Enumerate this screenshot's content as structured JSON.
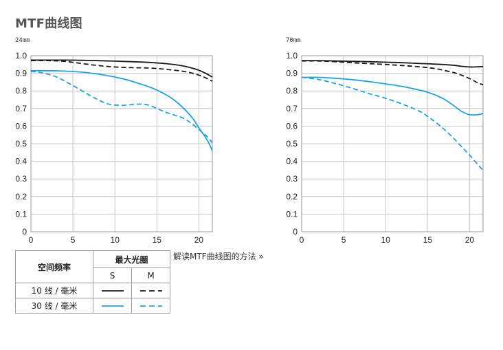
{
  "page": {
    "title": "MTF曲线图"
  },
  "legend": {
    "col_freq": "空间频率",
    "col_aperture": "最大光圈",
    "sub_s": "S",
    "sub_m": "M",
    "row_10": "10 线 / 毫米",
    "row_30": "30 线 / 毫米"
  },
  "link": {
    "text": "解读MTF曲线图的方法 »"
  },
  "colors": {
    "lp10": "#1a1a1a",
    "lp30": "#1aa3e8"
  },
  "chart_data": [
    {
      "type": "line",
      "title": "24mm",
      "xlabel": "",
      "ylabel": "",
      "xlim": [
        0,
        21.6
      ],
      "ylim": [
        0,
        1.0
      ],
      "xticks": [
        "0",
        "5",
        "10",
        "15",
        "20"
      ],
      "yticks": [
        "0",
        "0.1",
        "0.2",
        "0.3",
        "0.4",
        "0.5",
        "0.6",
        "0.7",
        "0.8",
        "0.9",
        "1.0"
      ],
      "grid": true,
      "series": [
        {
          "line": "10 线 / 毫米",
          "orientation": "S",
          "style": "solid",
          "x": [
            0,
            2,
            4,
            6,
            8,
            10,
            12,
            14,
            16,
            18,
            19,
            20,
            21,
            21.6
          ],
          "y": [
            0.975,
            0.975,
            0.975,
            0.974,
            0.972,
            0.969,
            0.966,
            0.962,
            0.955,
            0.943,
            0.932,
            0.917,
            0.895,
            0.878
          ]
        },
        {
          "line": "10 线 / 毫米",
          "orientation": "M",
          "style": "dashed",
          "x": [
            0,
            2,
            4,
            6,
            8,
            10,
            12,
            14,
            16,
            18,
            19,
            20,
            21,
            21.6
          ],
          "y": [
            0.972,
            0.972,
            0.968,
            0.956,
            0.944,
            0.936,
            0.932,
            0.93,
            0.923,
            0.912,
            0.903,
            0.89,
            0.87,
            0.855
          ]
        },
        {
          "line": "30 线 / 毫米",
          "orientation": "S",
          "style": "solid",
          "x": [
            0,
            1,
            3,
            5,
            7,
            9,
            11,
            13,
            15,
            17,
            19,
            20,
            21,
            21.6
          ],
          "y": [
            0.915,
            0.915,
            0.914,
            0.91,
            0.902,
            0.888,
            0.868,
            0.84,
            0.805,
            0.75,
            0.66,
            0.59,
            0.52,
            0.46
          ]
        },
        {
          "line": "30 线 / 毫米",
          "orientation": "M",
          "style": "dashed",
          "x": [
            0,
            1,
            3,
            5,
            7,
            8,
            9,
            10,
            11,
            12,
            13,
            14,
            15,
            16,
            17,
            18,
            19,
            20,
            21,
            21.6
          ],
          "y": [
            0.91,
            0.906,
            0.88,
            0.83,
            0.775,
            0.75,
            0.728,
            0.72,
            0.718,
            0.722,
            0.725,
            0.72,
            0.7,
            0.68,
            0.664,
            0.648,
            0.62,
            0.58,
            0.54,
            0.505
          ]
        }
      ]
    },
    {
      "type": "line",
      "title": "70mm",
      "xlabel": "",
      "ylabel": "",
      "xlim": [
        0,
        21.6
      ],
      "ylim": [
        0,
        1.0
      ],
      "xticks": [
        "0",
        "5",
        "10",
        "15",
        "20"
      ],
      "yticks": [
        "0",
        "0.1",
        "0.2",
        "0.3",
        "0.4",
        "0.5",
        "0.6",
        "0.7",
        "0.8",
        "0.9",
        "1.0"
      ],
      "grid": true,
      "series": [
        {
          "line": "10 线 / 毫米",
          "orientation": "S",
          "style": "solid",
          "x": [
            0,
            2,
            4,
            6,
            8,
            10,
            12,
            14,
            16,
            18,
            19,
            20,
            21,
            21.6
          ],
          "y": [
            0.972,
            0.972,
            0.97,
            0.968,
            0.966,
            0.963,
            0.96,
            0.956,
            0.952,
            0.946,
            0.94,
            0.936,
            0.937,
            0.938
          ]
        },
        {
          "line": "10 线 / 毫米",
          "orientation": "M",
          "style": "dashed",
          "x": [
            0,
            2,
            4,
            6,
            8,
            10,
            12,
            14,
            16,
            18,
            19,
            20,
            21,
            21.6
          ],
          "y": [
            0.97,
            0.97,
            0.966,
            0.96,
            0.955,
            0.95,
            0.944,
            0.937,
            0.926,
            0.905,
            0.89,
            0.87,
            0.845,
            0.835
          ]
        },
        {
          "line": "30 线 / 毫米",
          "orientation": "S",
          "style": "solid",
          "x": [
            0,
            2,
            4,
            6,
            8,
            10,
            12,
            14,
            15,
            16,
            17,
            18,
            19,
            20,
            21,
            21.6
          ],
          "y": [
            0.877,
            0.877,
            0.872,
            0.864,
            0.853,
            0.84,
            0.825,
            0.805,
            0.792,
            0.775,
            0.752,
            0.72,
            0.685,
            0.665,
            0.665,
            0.672
          ]
        },
        {
          "line": "30 线 / 毫米",
          "orientation": "M",
          "style": "dashed",
          "x": [
            0,
            2,
            4,
            6,
            8,
            10,
            12,
            14,
            15,
            16,
            17,
            18,
            19,
            20,
            21,
            21.6
          ],
          "y": [
            0.877,
            0.865,
            0.842,
            0.815,
            0.785,
            0.758,
            0.725,
            0.685,
            0.655,
            0.62,
            0.58,
            0.535,
            0.485,
            0.435,
            0.38,
            0.35
          ]
        }
      ]
    }
  ]
}
